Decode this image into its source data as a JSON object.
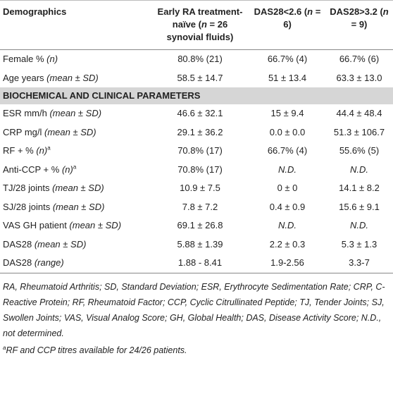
{
  "header": {
    "columns": [
      [
        {
          "text": "Demographics"
        }
      ],
      [
        {
          "text": "Early RA treatment-naïve ("
        },
        {
          "text": "n",
          "italic": true
        },
        {
          "text": " = 26 synovial fluids)"
        }
      ],
      [
        {
          "text": "DAS28<2.6 ("
        },
        {
          "text": "n",
          "italic": true
        },
        {
          "text": " = 6)"
        }
      ],
      [
        {
          "text": "DAS28>3.2 ("
        },
        {
          "text": "n",
          "italic": true
        },
        {
          "text": " = 9)"
        }
      ]
    ]
  },
  "table": {
    "rows": [
      {
        "label": [
          {
            "text": "Female % "
          },
          {
            "text": "(n)",
            "italic": true
          }
        ],
        "cells": [
          {
            "text": "80.8% (21)"
          },
          {
            "text": "66.7% (4)"
          },
          {
            "text": "66.7% (6)"
          }
        ]
      },
      {
        "label": [
          {
            "text": "Age years "
          },
          {
            "text": "(mean ± SD)",
            "italic": true
          }
        ],
        "cells": [
          {
            "text": "58.5 ± 14.7"
          },
          {
            "text": "51 ± 13.4"
          },
          {
            "text": "63.3 ± 13.0"
          }
        ]
      },
      {
        "section": "BIOCHEMICAL AND CLINICAL PARAMETERS"
      },
      {
        "label": [
          {
            "text": "ESR mm/h "
          },
          {
            "text": "(mean ± SD)",
            "italic": true
          }
        ],
        "cells": [
          {
            "text": "46.6 ± 32.1"
          },
          {
            "text": "15 ± 9.4"
          },
          {
            "text": "44.4 ± 48.4"
          }
        ]
      },
      {
        "label": [
          {
            "text": "CRP mg/l "
          },
          {
            "text": "(mean ± SD)",
            "italic": true
          }
        ],
        "cells": [
          {
            "text": "29.1 ± 36.2"
          },
          {
            "text": "0.0 ± 0.0"
          },
          {
            "text": "51.3 ± 106.7"
          }
        ]
      },
      {
        "label": [
          {
            "text": "RF + % "
          },
          {
            "text": "(n)",
            "italic": true
          },
          {
            "text": "a",
            "sup": true
          }
        ],
        "cells": [
          {
            "text": "70.8% (17)"
          },
          {
            "text": "66.7% (4)"
          },
          {
            "text": "55.6% (5)"
          }
        ]
      },
      {
        "label": [
          {
            "text": "Anti-CCP + % "
          },
          {
            "text": "(n)",
            "italic": true
          },
          {
            "text": "a",
            "sup": true
          }
        ],
        "cells": [
          {
            "text": "70.8% (17)"
          },
          {
            "text": "N.D.",
            "italic": true
          },
          {
            "text": "N.D.",
            "italic": true
          }
        ]
      },
      {
        "label": [
          {
            "text": "TJ/28 joints "
          },
          {
            "text": "(mean ± SD)",
            "italic": true
          }
        ],
        "cells": [
          {
            "text": "10.9 ± 7.5"
          },
          {
            "text": "0 ± 0"
          },
          {
            "text": "14.1 ± 8.2"
          }
        ]
      },
      {
        "label": [
          {
            "text": "SJ/28 joints "
          },
          {
            "text": "(mean ± SD)",
            "italic": true
          }
        ],
        "cells": [
          {
            "text": "7.8 ± 7.2"
          },
          {
            "text": "0.4 ± 0.9"
          },
          {
            "text": "15.6 ± 9.1"
          }
        ]
      },
      {
        "label": [
          {
            "text": "VAS GH patient "
          },
          {
            "text": "(mean ± SD)",
            "italic": true
          }
        ],
        "cells": [
          {
            "text": "69.1 ± 26.8"
          },
          {
            "text": "N.D.",
            "italic": true
          },
          {
            "text": "N.D.",
            "italic": true
          }
        ]
      },
      {
        "label": [
          {
            "text": "DAS28 "
          },
          {
            "text": "(mean ± SD)",
            "italic": true
          }
        ],
        "cells": [
          {
            "text": "5.88 ± 1.39"
          },
          {
            "text": "2.2 ± 0.3"
          },
          {
            "text": "5.3 ± 1.3"
          }
        ]
      },
      {
        "label": [
          {
            "text": "DAS28 "
          },
          {
            "text": "(range)",
            "italic": true
          }
        ],
        "cells": [
          {
            "text": "1.88 - 8.41"
          },
          {
            "text": "1.9-2.56"
          },
          {
            "text": "3.3-7"
          }
        ]
      }
    ]
  },
  "footnotes": [
    [
      {
        "text": "RA, Rheumatoid Arthritis; SD, Standard Deviation; ESR, Erythrocyte Sedimentation Rate; CRP, C-Reactive Protein; RF, Rheumatoid Factor; CCP, Cyclic Citrullinated Peptide; TJ, Tender Joints; SJ, Swollen Joints; VAS, Visual Analog Score; GH, Global Health; DAS, Disease Activity Score; N.D., not determined.",
        "italic": true
      }
    ],
    [
      {
        "text": "a",
        "sup": true,
        "italic": true
      },
      {
        "text": "RF and CCP titres available for 24/26 patients.",
        "italic": true
      }
    ]
  ]
}
